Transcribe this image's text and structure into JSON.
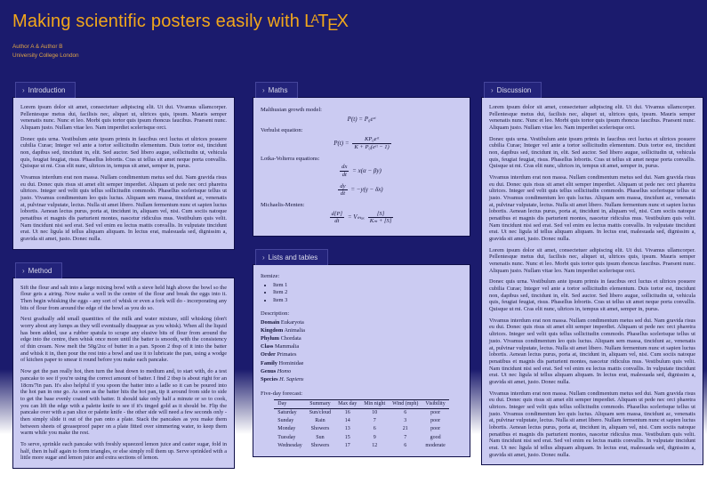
{
  "theme": {
    "background_navy": "#1b1b6d",
    "box_fill": "#cbcbf2",
    "box_border": "#0e0e48",
    "tab_fill": "#23237a",
    "title_orange": "#f2a71b",
    "author_orange": "#dfa447",
    "body_text": "#16163a"
  },
  "tab_chevron": "›",
  "header": {
    "title_prefix": "Making scientific posters easily with",
    "latex_logo": {
      "l": "L",
      "a": "A",
      "t": "T",
      "e": "E",
      "x": "X"
    },
    "authors": "Author A & Author B",
    "affiliation": "University College London"
  },
  "sections": {
    "introduction": {
      "title": "Introduction",
      "paragraphs": [
        "Lorem ipsum dolor sit amet, consectetuer adipiscing elit. Ut dui. Vivamus ullamcorper. Pellentesque metus dui, facilisis nec, aliquet ut, ultrices quis, ipsum. Mauris semper venenatis nunc. Nunc et leo. Morbi quis tortor quis ipsum rhoncus faucibus. Praesent nunc. Aliquam justo. Nullam vitae leo. Nam imperdiet scelerisque orci.",
        "Donec quis urna. Vestibulum ante ipsum primis in faucibus orci luctus et ultrices posuere cubilia Curae; Integer vel ante a tortor sollicitudin elementum. Duis tortor est, tincidunt non, dapibus sed, tincidunt in, elit. Sed auctor. Sed libero augue, sollicitudin ut, vehicula quis, feugiat feugiat, risus. Phasellus lobortis. Cras ut tellus sit amet neque porta convallis. Quisque ut mi. Cras elit nunc, ultrices in, tempus sit amet, semper in, purus.",
        "Vivamus interdum erat non massa. Nullam condimentum metus sed dui. Nam gravida risus eu dui. Donec quis risus sit amet elit semper imperdiet. Aliquam ut pede nec orci pharetra ultrices. Integer sed velit quis tellus sollicitudin commodo. Phasellus scelerisque tellus ut justo. Vivamus condimentum leo quis luctus. Aliquam sem massa, tincidunt ac, venenatis at, pulvinar vulputate, lectus. Nulla sit amet libero. Nullam fermentum nunc et sapien luctus lobortis. Aenean lectus purus, porta at, tincidunt in, aliquam vel, nisi. Cum sociis natoque penatibus et magnis dis parturient montes, nascetur ridiculus mus. Vestibulum quis velit. Nam tincidunt nisi sed erat. Sed vel enim eu lectus mattis convallis. In vulputate tincidunt erat. Ut nec ligula id tellus aliquam aliquam. In lectus erat, malesuada sed, dignissim a, gravida sit amet, justo. Donec nulla."
      ]
    },
    "method": {
      "title": "Method",
      "paragraphs": [
        "Sift the flour and salt into a large mixing bowl with a sieve held high above the bowl so the flour gets a airing. Now make a well in the centre of the flour and break the eggs into it. Then begin whisking the eggs - any sort of whisk or even a fork will do - incorporating any bits of flour from around the edge of the bowl as you do so.",
        "Next gradually add small quantities of the milk and water mixture, still whisking (don't worry about any lumps as they will eventually disappear as you whisk). When all the liquid has been added, use a rubber spatula to scrape any elusive bits of flour from around the edge into the centre, then whisk once more until the batter is smooth, with the consistency of thin cream. Now melt the 50g/2oz of butter in a pan. Spoon 2 tbsp of it into the batter and whisk it in, then pour the rest into a bowl and use it to lubricate the pan, using a wodge of kitchen paper to smear it round before you make each pancake.",
        "Now get the pan really hot, then turn the heat down to medium and, to start with, do a test pancake to see if you're using the correct amount of batter. I find 2 tbsp is about right for an 18cm/7in pan. It's also helpful if you spoon the batter into a ladle so it can be poured into the hot pan in one go. As soon as the batter hits the hot pan, tip it around from side to side to get the base evenly coated with batter. It should take only half a minute or so to cook, you can lift the edge with a palette knife to see if it's tinged gold as it should be. Flip the pancake over with a pan slice or palette knife - the other side will need a few seconds only - then simply slide it out of the pan onto a plate. Stack the pancakes as you make them between sheets of greaseproof paper on a plate fitted over simmering water, to keep them warm while you make the rest.",
        "To serve, sprinkle each pancake with freshly squeezed lemon juice and caster sugar, fold in half, then in half again to form triangles, or else simply roll them up. Serve sprinkled with a little more sugar and lemon juice and extra sections of lemon."
      ]
    },
    "maths": {
      "title": "Maths",
      "rows": [
        {
          "label": "Malthusian growth model:",
          "eq": "P(t) = P₀eʳᵗ"
        },
        {
          "label": "Verhulst equation:",
          "lhs": "P(t) =",
          "num": "KP₀eʳᵗ",
          "den": "K + P₀(eʳᵗ − 1)"
        },
        {
          "label": "Lotka-Volterra equations:",
          "eq1": {
            "num": "dx",
            "den": "dt",
            "rhs": "= x(α − βy)"
          },
          "eq2": {
            "num": "dy",
            "den": "dt",
            "rhs": "= −y(γ − δx)"
          }
        },
        {
          "label": "Michaelis-Menten:",
          "lhs_num": "d[P]",
          "lhs_den": "dt",
          "mid": "= Vₘₐₓ",
          "num": "[S]",
          "den": "Kₘ + [S]"
        }
      ]
    },
    "lists": {
      "title": "Lists and tables",
      "itemize_label": "Itemize:",
      "items": [
        "Item 1",
        "Item 2",
        "Item 3"
      ],
      "description_label": "Description:",
      "description": [
        {
          "term": "Domain",
          "value": "Eukaryota"
        },
        {
          "term": "Kingdom",
          "value": "Animalia"
        },
        {
          "term": "Phylum",
          "value": "Chordata"
        },
        {
          "term": "Class",
          "value": "Mammalia"
        },
        {
          "term": "Order",
          "value": "Primates"
        },
        {
          "term": "Family",
          "value": "Hominidae"
        },
        {
          "term": "Genus",
          "value": "Homo"
        },
        {
          "term": "Species",
          "value": "H. Sapiens"
        }
      ],
      "table_label": "Five-day forecast:",
      "table": {
        "headers": [
          "Day",
          "Summary",
          "Max day",
          "Min night",
          "Wind (mph)",
          "Visibility"
        ],
        "rows": [
          [
            "Saturday",
            "Sun/cloud",
            "16",
            "10",
            "6",
            "poor"
          ],
          [
            "Sunday",
            "Rain",
            "14",
            "7",
            "3",
            "poor"
          ],
          [
            "Monday",
            "Showers",
            "13",
            "6",
            "21",
            "poor"
          ],
          [
            "Tuesday",
            "Sun",
            "15",
            "9",
            "7",
            "good"
          ],
          [
            "Wednesday",
            "Showers",
            "17",
            "12",
            "6",
            "moderate"
          ]
        ]
      }
    },
    "discussion": {
      "title": "Discussion",
      "paragraphs": [
        "Lorem ipsum dolor sit amet, consectetuer adipiscing elit. Ut dui. Vivamus ullamcorper. Pellentesque metus dui, facilisis nec, aliquet ut, ultrices quis, ipsum. Mauris semper venenatis nunc. Nunc et leo. Morbi quis tortor quis ipsum rhoncus faucibus. Praesent nunc. Aliquam justo. Nullam vitae leo. Nam imperdiet scelerisque orci.",
        "Donec quis urna. Vestibulum ante ipsum primis in faucibus orci luctus et ultrices posuere cubilia Curae; Integer vel ante a tortor sollicitudin elementum. Duis tortor est, tincidunt non, dapibus sed, tincidunt in, elit. Sed auctor. Sed libero augue, sollicitudin ut, vehicula quis, feugiat feugiat, risus. Phasellus lobortis. Cras ut tellus sit amet neque porta convallis. Quisque ut mi. Cras elit nunc, ultrices in, tempus sit amet, semper in, purus.",
        "Vivamus interdum erat non massa. Nullam condimentum metus sed dui. Nam gravida risus eu dui. Donec quis risus sit amet elit semper imperdiet. Aliquam ut pede nec orci pharetra ultrices. Integer sed velit quis tellus sollicitudin commodo. Phasellus scelerisque tellus ut justo. Vivamus condimentum leo quis luctus. Aliquam sem massa, tincidunt ac, venenatis at, pulvinar vulputate, lectus. Nulla sit amet libero. Nullam fermentum nunc et sapien luctus lobortis. Aenean lectus purus, porta at, tincidunt in, aliquam vel, nisi. Cum sociis natoque penatibus et magnis dis parturient montes, nascetur ridiculus mus. Vestibulum quis velit. Nam tincidunt nisi sed erat. Sed vel enim eu lectus mattis convallis. In vulputate tincidunt erat. Ut nec ligula id tellus aliquam aliquam. In lectus erat, malesuada sed, dignissim a, gravida sit amet, justo. Donec nulla.",
        "Lorem ipsum dolor sit amet, consectetuer adipiscing elit. Ut dui. Vivamus ullamcorper. Pellentesque metus dui, facilisis nec, aliquet ut, ultrices quis, ipsum. Mauris semper venenatis nunc. Nunc et leo. Morbi quis tortor quis ipsum rhoncus faucibus. Praesent nunc. Aliquam justo. Nullam vitae leo. Nam imperdiet scelerisque orci.",
        "Donec quis urna. Vestibulum ante ipsum primis in faucibus orci luctus et ultrices posuere cubilia Curae; Integer vel ante a tortor sollicitudin elementum. Duis tortor est, tincidunt non, dapibus sed, tincidunt in, elit. Sed auctor. Sed libero augue, sollicitudin ut, vehicula quis, feugiat feugiat, risus. Phasellus lobortis. Cras ut tellus sit amet neque porta convallis. Quisque ut mi. Cras elit nunc, ultrices in, tempus sit amet, semper in, purus.",
        "Vivamus interdum erat non massa. Nullam condimentum metus sed dui. Nam gravida risus eu dui. Donec quis risus sit amet elit semper imperdiet. Aliquam ut pede nec orci pharetra ultrices. Integer sed velit quis tellus sollicitudin commodo. Phasellus scelerisque tellus ut justo. Vivamus condimentum leo quis luctus. Aliquam sem massa, tincidunt ac, venenatis at, pulvinar vulputate, lectus. Nulla sit amet libero. Nullam fermentum nunc et sapien luctus lobortis. Aenean lectus purus, porta at, tincidunt in, aliquam vel, nisi. Cum sociis natoque penatibus et magnis dis parturient montes, nascetur ridiculus mus. Vestibulum quis velit. Nam tincidunt nisi sed erat. Sed vel enim eu lectus mattis convallis. In vulputate tincidunt erat. Ut nec ligula id tellus aliquam aliquam. In lectus erat, malesuada sed, dignissim a, gravida sit amet, justo. Donec nulla.",
        "Vivamus interdum erat non massa. Nullam condimentum metus sed dui. Nam gravida risus eu dui. Donec quis risus sit amet elit semper imperdiet. Aliquam ut pede nec orci pharetra ultrices. Integer sed velit quis tellus sollicitudin commodo. Phasellus scelerisque tellus ut justo. Vivamus condimentum leo quis luctus. Aliquam sem massa, tincidunt ac, venenatis at, pulvinar vulputate, lectus. Nulla sit amet libero. Nullam fermentum nunc et sapien luctus lobortis. Aenean lectus purus, porta at, tincidunt in, aliquam vel, nisi. Cum sociis natoque penatibus et magnis dis parturient montes, nascetur ridiculus mus. Vestibulum quis velit. Nam tincidunt nisi sed erat. Sed vel enim eu lectus mattis convallis. In vulputate tincidunt erat. Ut nec ligula id tellus aliquam aliquam. In lectus erat, malesuada sed, dignissim a, gravida sit amet, justo. Donec nulla."
      ]
    }
  }
}
